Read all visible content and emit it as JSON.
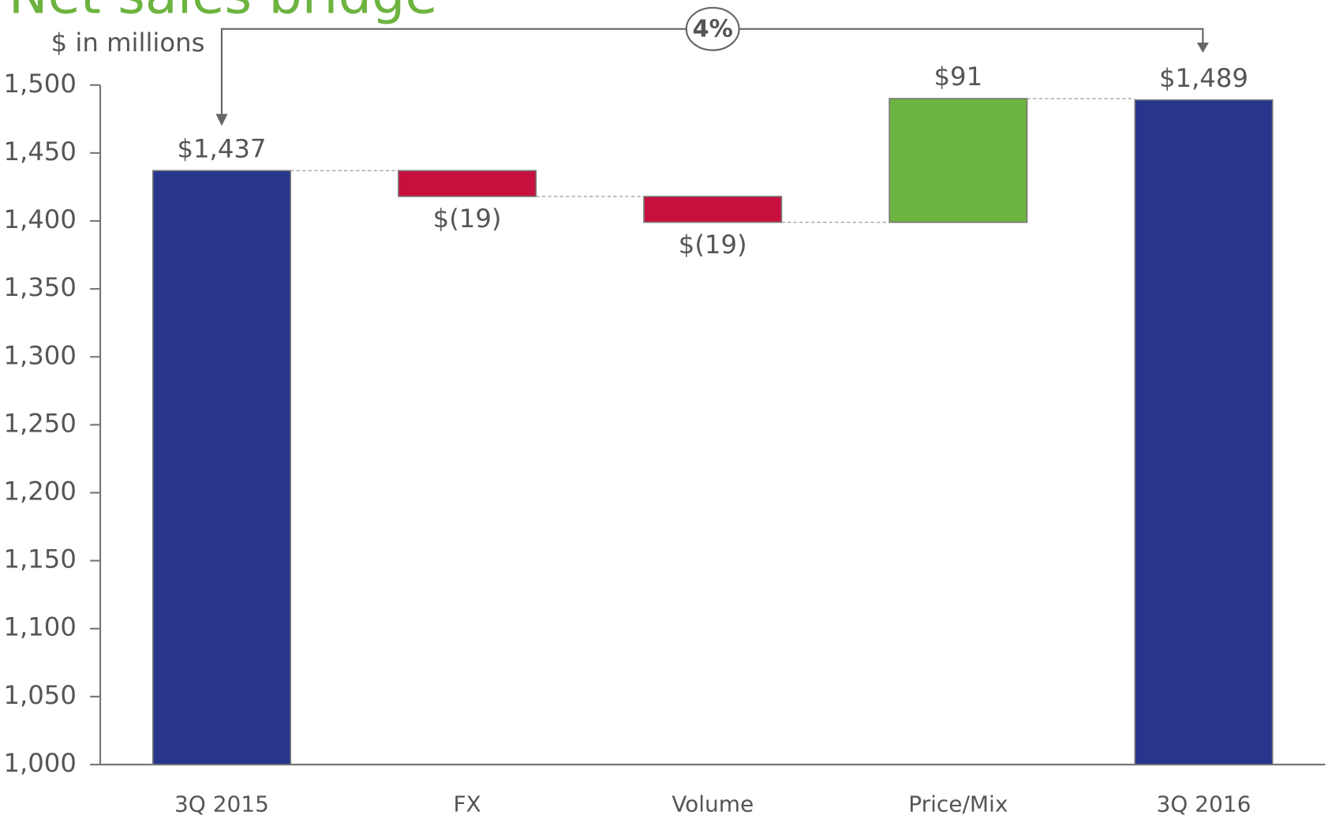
{
  "chart_data": {
    "type": "waterfall",
    "title": "Net sales bridge",
    "ylabel": "$ in millions",
    "annotation": "4%",
    "categories": [
      "3Q 2015",
      "FX",
      "Volume",
      "Price/Mix",
      "3Q 2016"
    ],
    "values": [
      1437,
      -19,
      -19,
      91,
      1489
    ],
    "value_labels": [
      "$1,437",
      "$(19)",
      "$(19)",
      "$91",
      "$1,489"
    ],
    "colors": [
      "#27368c",
      "#c8103e",
      "#c8103e",
      "#6db33f",
      "#27368c"
    ],
    "ylim": [
      1000,
      1500
    ],
    "yticks": [
      {
        "value": 1000,
        "label": "1,000"
      },
      {
        "value": 1050,
        "label": "1,050"
      },
      {
        "value": 1100,
        "label": "1,100"
      },
      {
        "value": 1150,
        "label": "1,150"
      },
      {
        "value": 1200,
        "label": "1,200"
      },
      {
        "value": 1250,
        "label": "1,250"
      },
      {
        "value": 1300,
        "label": "1,300"
      },
      {
        "value": 1350,
        "label": "1,350"
      },
      {
        "value": 1400,
        "label": "1,400"
      },
      {
        "value": 1450,
        "label": "1,450"
      },
      {
        "value": 1500,
        "label": "1,500"
      }
    ]
  }
}
